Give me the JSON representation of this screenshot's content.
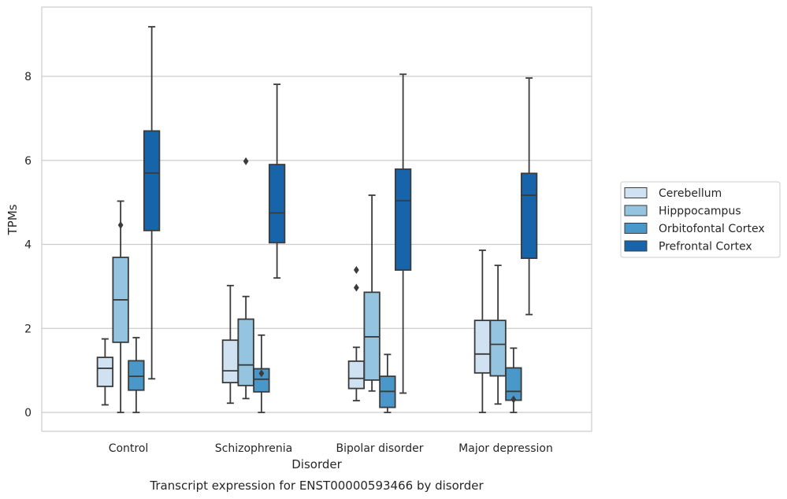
{
  "chart_data": {
    "type": "box",
    "title": "",
    "caption": "Transcript expression for ENST00000593466 by disorder",
    "xlabel": "Disorder",
    "ylabel": "TPMs",
    "ylim": [
      -0.45,
      9.65
    ],
    "yticks": [
      0,
      2,
      4,
      6,
      8
    ],
    "grid": "horizontal",
    "legend_position": "right",
    "categories": [
      "Control",
      "Schizophrenia",
      "Bipolar disorder",
      "Major depression"
    ],
    "series": [
      {
        "name": "Cerebellum",
        "color": "#d0e1f2",
        "boxes": [
          {
            "whisker_low": 0.18,
            "q1": 0.62,
            "median": 1.05,
            "q3": 1.31,
            "whisker_high": 1.75,
            "outliers": []
          },
          {
            "whisker_low": 0.22,
            "q1": 0.71,
            "median": 0.99,
            "q3": 1.72,
            "whisker_high": 3.02,
            "outliers": []
          },
          {
            "whisker_low": 0.28,
            "q1": 0.57,
            "median": 0.81,
            "q3": 1.22,
            "whisker_high": 1.55,
            "outliers": [
              2.97,
              3.39
            ]
          },
          {
            "whisker_low": 0.0,
            "q1": 0.94,
            "median": 1.39,
            "q3": 2.19,
            "whisker_high": 3.86,
            "outliers": []
          }
        ]
      },
      {
        "name": "Hipppocampus",
        "color": "#94c4df",
        "boxes": [
          {
            "whisker_low": 0.0,
            "q1": 1.67,
            "median": 2.68,
            "q3": 3.69,
            "whisker_high": 5.03,
            "outliers": [
              4.46
            ]
          },
          {
            "whisker_low": 0.33,
            "q1": 0.64,
            "median": 1.13,
            "q3": 2.22,
            "whisker_high": 2.76,
            "outliers": [
              5.98
            ]
          },
          {
            "whisker_low": 0.51,
            "q1": 0.77,
            "median": 1.8,
            "q3": 2.86,
            "whisker_high": 5.17,
            "outliers": []
          },
          {
            "whisker_low": 0.2,
            "q1": 0.87,
            "median": 1.62,
            "q3": 2.19,
            "whisker_high": 3.5,
            "outliers": []
          }
        ]
      },
      {
        "name": "Orbitofontal Cortex",
        "color": "#4a98c9",
        "boxes": [
          {
            "whisker_low": 0.0,
            "q1": 0.53,
            "median": 0.86,
            "q3": 1.23,
            "whisker_high": 1.78,
            "outliers": []
          },
          {
            "whisker_low": 0.0,
            "q1": 0.49,
            "median": 0.79,
            "q3": 1.04,
            "whisker_high": 1.84,
            "outliers": [
              0.93
            ]
          },
          {
            "whisker_low": 0.0,
            "q1": 0.12,
            "median": 0.5,
            "q3": 0.86,
            "whisker_high": 1.38,
            "outliers": []
          },
          {
            "whisker_low": 0.0,
            "q1": 0.29,
            "median": 0.5,
            "q3": 1.06,
            "whisker_high": 1.53,
            "outliers": [
              0.31
            ]
          }
        ]
      },
      {
        "name": "Prefrontal Cortex",
        "color": "#1764ab",
        "boxes": [
          {
            "whisker_low": 0.8,
            "q1": 4.33,
            "median": 5.7,
            "q3": 6.7,
            "whisker_high": 9.18,
            "outliers": []
          },
          {
            "whisker_low": 3.2,
            "q1": 4.04,
            "median": 4.75,
            "q3": 5.9,
            "whisker_high": 7.81,
            "outliers": []
          },
          {
            "whisker_low": 0.46,
            "q1": 3.39,
            "median": 5.04,
            "q3": 5.79,
            "whisker_high": 8.05,
            "outliers": []
          },
          {
            "whisker_low": 2.33,
            "q1": 3.67,
            "median": 5.17,
            "q3": 5.69,
            "whisker_high": 7.96,
            "outliers": []
          }
        ]
      }
    ]
  }
}
